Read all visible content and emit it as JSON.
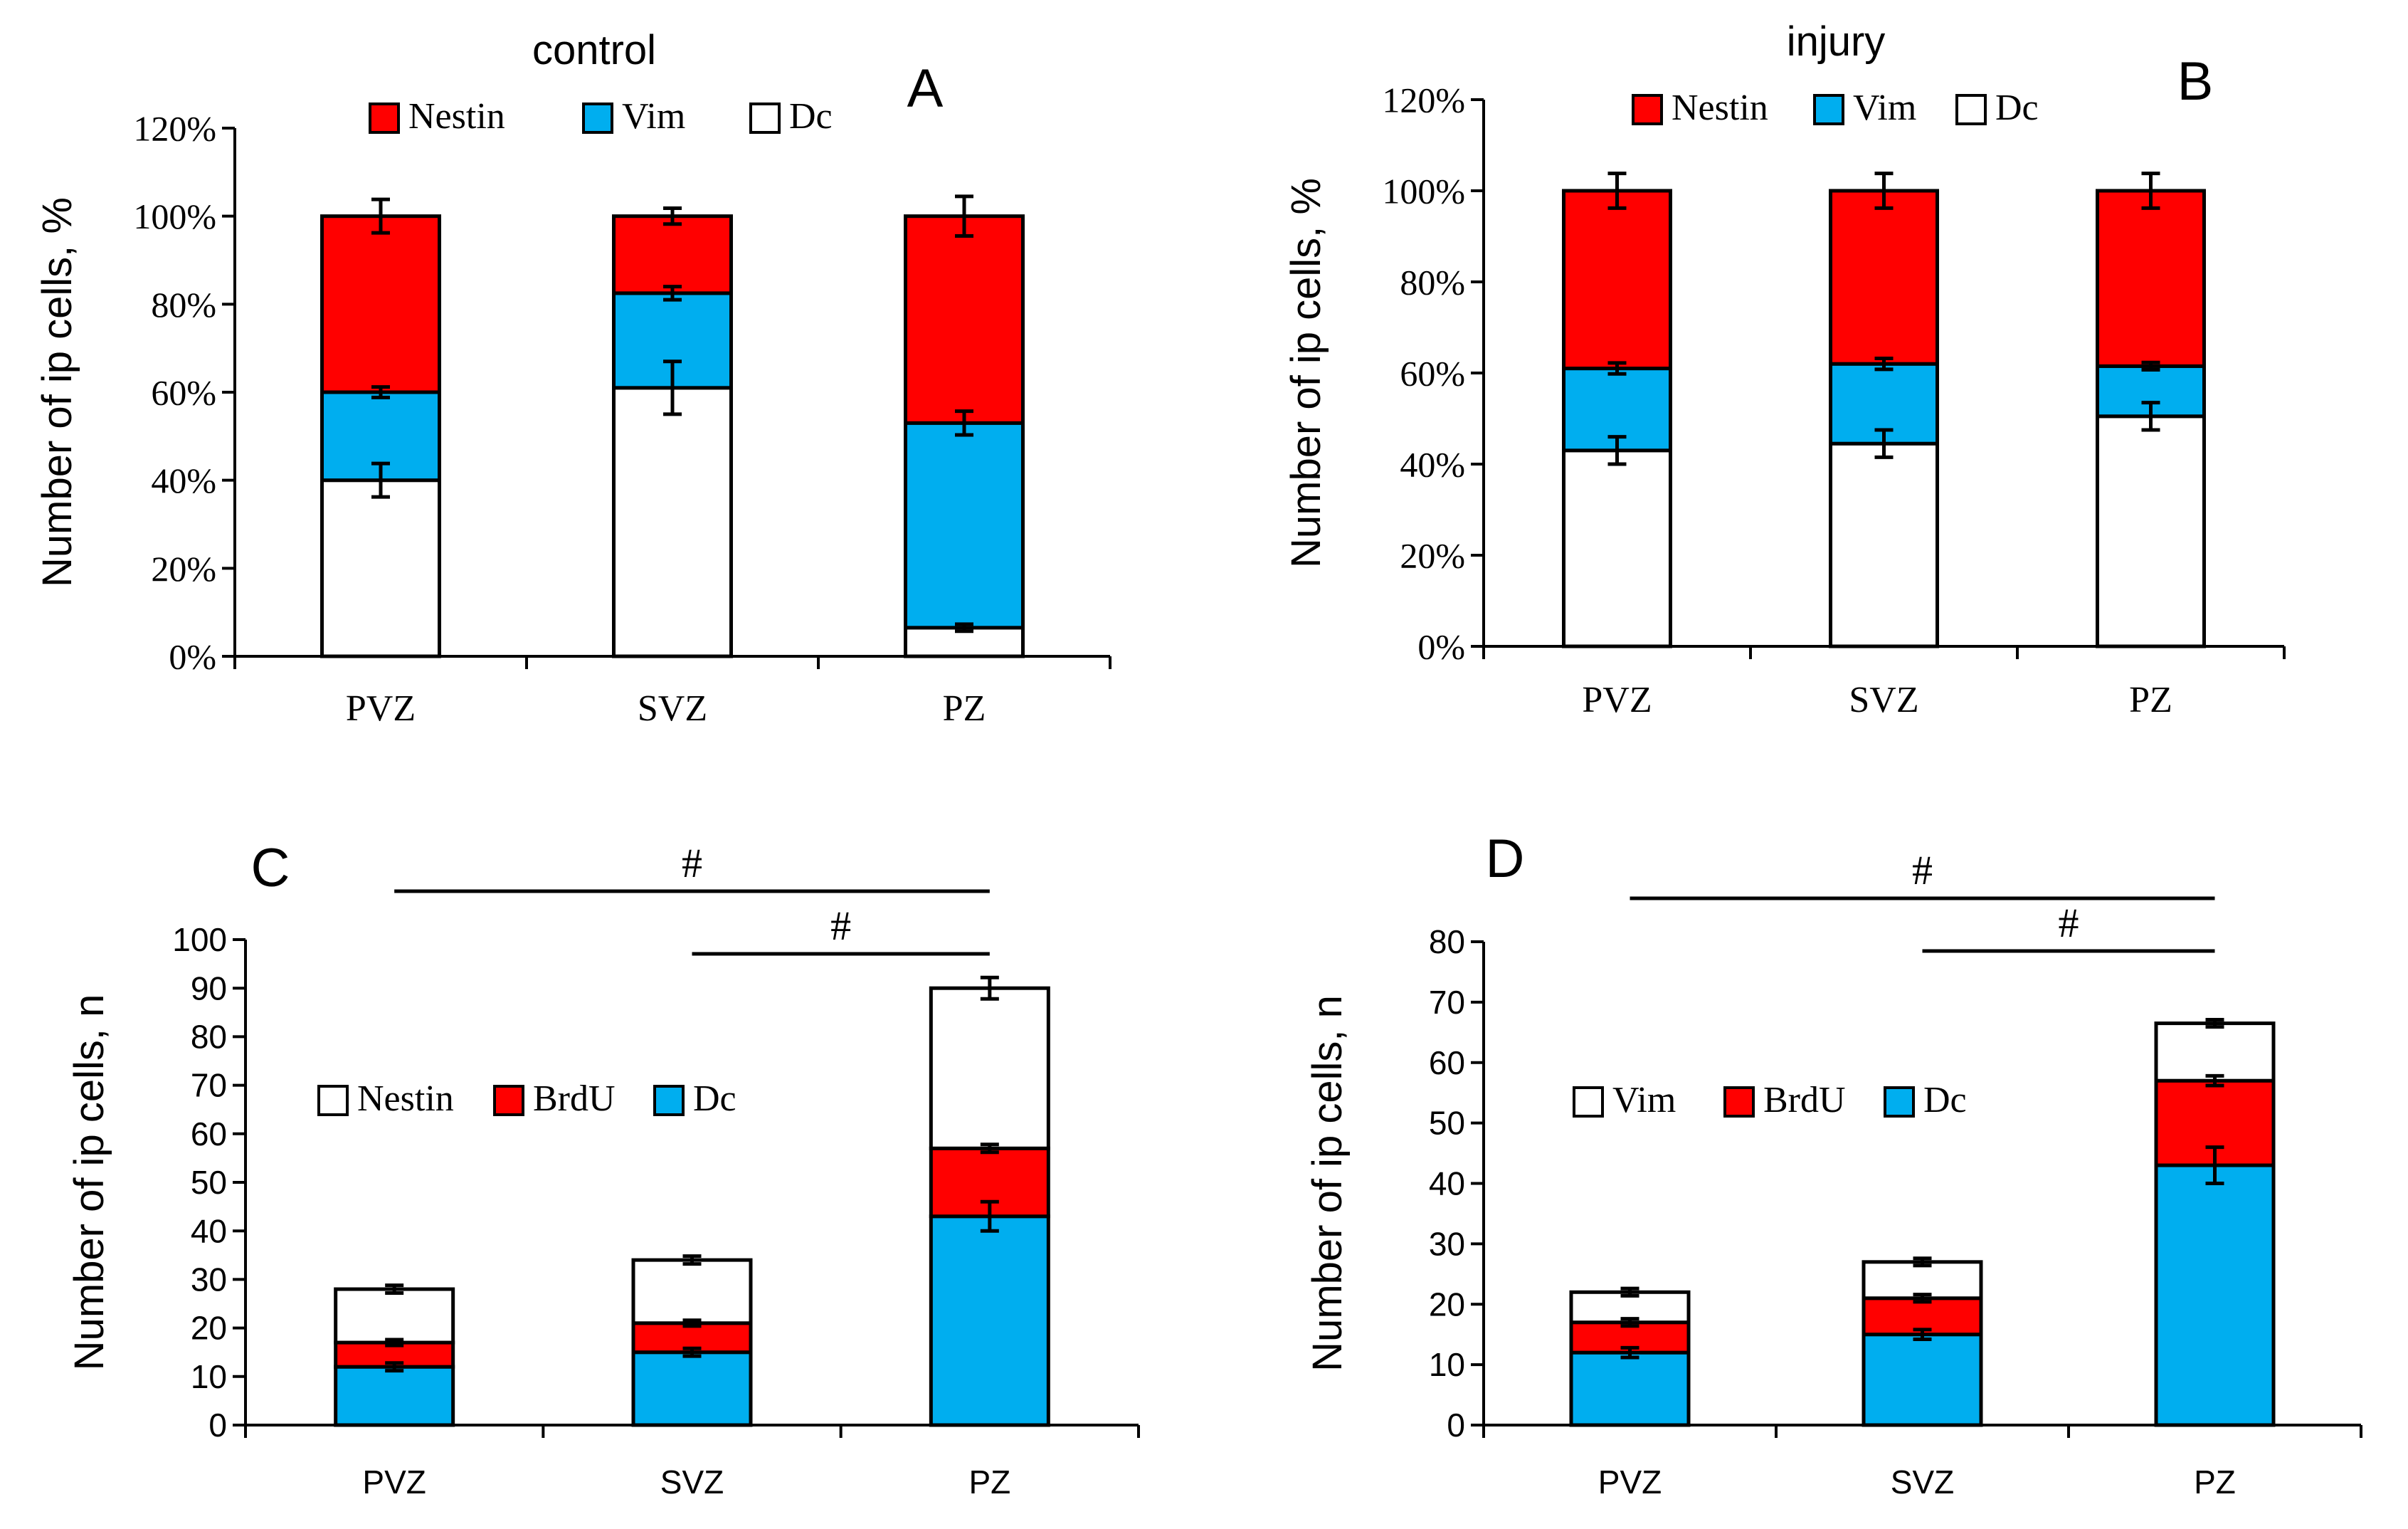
{
  "chart_data": [
    {
      "panel": "A",
      "type": "bar",
      "stacked": true,
      "title": "control",
      "ylabel": "Number of ip cells, %",
      "xlabel": "",
      "categories": [
        "PVZ",
        "SVZ",
        "PZ"
      ],
      "ylim": [
        0,
        120
      ],
      "yticks": [
        "0%",
        "20%",
        "40%",
        "60%",
        "80%",
        "100%",
        "120%"
      ],
      "series": [
        {
          "name": "Dc",
          "color": "#ffffff",
          "values": [
            40,
            61,
            6.5
          ],
          "errors": [
            3.8,
            6,
            0.8
          ]
        },
        {
          "name": "Vim",
          "color": "#00aeef",
          "values": [
            20,
            21.5,
            46.5
          ],
          "errors": [
            1.2,
            1.5,
            2.7
          ]
        },
        {
          "name": "Nestin",
          "color": "#ff0000",
          "values": [
            40,
            17.5,
            47
          ],
          "errors": [
            3.8,
            1.8,
            4.5
          ]
        }
      ],
      "legend": [
        "Nestin",
        "Vim",
        "Dc"
      ],
      "legend_position": "top"
    },
    {
      "panel": "B",
      "type": "bar",
      "stacked": true,
      "title": "injury",
      "ylabel": "Number of ip cells, %",
      "xlabel": "",
      "categories": [
        "PVZ",
        "SVZ",
        "PZ"
      ],
      "ylim": [
        0,
        120
      ],
      "yticks": [
        "0%",
        "20%",
        "40%",
        "60%",
        "80%",
        "100%",
        "120%"
      ],
      "series": [
        {
          "name": "Dc",
          "color": "#ffffff",
          "values": [
            43,
            44.5,
            50.5
          ],
          "errors": [
            3,
            3,
            3
          ]
        },
        {
          "name": "Vim",
          "color": "#00aeef",
          "values": [
            18,
            17.5,
            11
          ],
          "errors": [
            1.2,
            1.2,
            0.8
          ]
        },
        {
          "name": "Nestin",
          "color": "#ff0000",
          "values": [
            39,
            38,
            38.5
          ],
          "errors": [
            3.8,
            3.8,
            3.8
          ]
        }
      ],
      "legend": [
        "Nestin",
        "Vim",
        "Dc"
      ],
      "legend_position": "top"
    },
    {
      "panel": "C",
      "type": "bar",
      "stacked": true,
      "title": "",
      "ylabel": "Number of ip cells, n",
      "xlabel": "",
      "categories": [
        "PVZ",
        "SVZ",
        "PZ"
      ],
      "ylim": [
        0,
        100
      ],
      "yticks": [
        "0",
        "10",
        "20",
        "30",
        "40",
        "50",
        "60",
        "70",
        "80",
        "90",
        "100"
      ],
      "series": [
        {
          "name": "Dc",
          "color": "#00aeef",
          "values": [
            12,
            15,
            43
          ],
          "errors": [
            0.8,
            0.8,
            3
          ]
        },
        {
          "name": "BrdU",
          "color": "#ff0000",
          "values": [
            5,
            6,
            14
          ],
          "errors": [
            0.6,
            0.6,
            0.8
          ]
        },
        {
          "name": "Nestin",
          "color": "#ffffff",
          "values": [
            11,
            13,
            33
          ],
          "errors": [
            0.8,
            0.8,
            2.2
          ]
        }
      ],
      "legend": [
        "Nestin",
        "BrdU",
        "Dc"
      ],
      "legend_position": "middle-left",
      "annotations": [
        {
          "text": "#",
          "from": "PVZ",
          "to": "PZ"
        },
        {
          "text": "#",
          "from": "SVZ",
          "to": "PZ"
        }
      ]
    },
    {
      "panel": "D",
      "type": "bar",
      "stacked": true,
      "title": "",
      "ylabel": "Number of ip cells, n",
      "xlabel": "",
      "categories": [
        "PVZ",
        "SVZ",
        "PZ"
      ],
      "ylim": [
        0,
        80
      ],
      "yticks": [
        "0",
        "10",
        "20",
        "30",
        "40",
        "50",
        "60",
        "70",
        "80"
      ],
      "series": [
        {
          "name": "Dc",
          "color": "#00aeef",
          "values": [
            12,
            15,
            43
          ],
          "errors": [
            0.8,
            0.8,
            3
          ]
        },
        {
          "name": "BrdU",
          "color": "#ff0000",
          "values": [
            5,
            6,
            14
          ],
          "errors": [
            0.6,
            0.6,
            0.8
          ]
        },
        {
          "name": "Vim",
          "color": "#ffffff",
          "values": [
            5,
            6,
            9.5
          ],
          "errors": [
            0.6,
            0.6,
            0.6
          ]
        }
      ],
      "legend": [
        "Vim",
        "BrdU",
        "Dc"
      ],
      "legend_position": "middle-left",
      "annotations": [
        {
          "text": "#",
          "from": "PVZ",
          "to": "PZ"
        },
        {
          "text": "#",
          "from": "SVZ",
          "to": "PZ"
        }
      ]
    }
  ]
}
